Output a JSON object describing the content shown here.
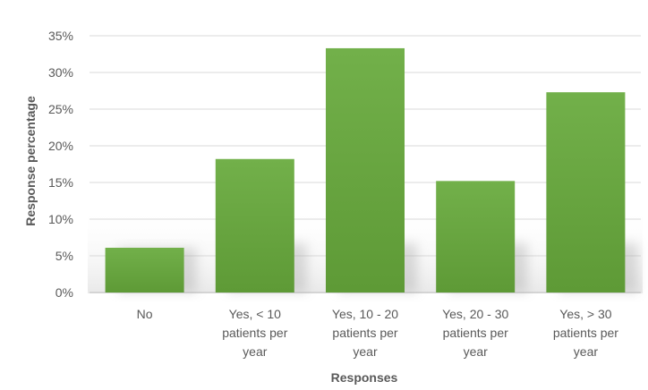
{
  "chart_data": {
    "type": "bar",
    "categories": [
      "No",
      "Yes, < 10 patients per year",
      "Yes, 10 - 20 patients per year",
      "Yes, 20 - 30 patients per year",
      "Yes, > 30 patients per year"
    ],
    "category_lines": [
      [
        "No"
      ],
      [
        "Yes, < 10",
        "patients per",
        "year"
      ],
      [
        "Yes, 10 - 20",
        "patients per",
        "year"
      ],
      [
        "Yes, 20 - 30",
        "patients per",
        "year"
      ],
      [
        "Yes, > 30",
        "patients per",
        "year"
      ]
    ],
    "values": [
      6.1,
      18.2,
      33.3,
      15.2,
      27.3
    ],
    "value_unit": "%",
    "title": "",
    "xlabel": "Responses",
    "ylabel": "Response percentage",
    "ylim": [
      0,
      35
    ],
    "yticks": [
      0,
      5,
      10,
      15,
      20,
      25,
      30,
      35
    ],
    "ytick_labels": [
      "0%",
      "5%",
      "10%",
      "15%",
      "20%",
      "25%",
      "30%",
      "35%"
    ],
    "grid": true,
    "legend": "none",
    "colors": {
      "bar_top": "#72b04a",
      "bar_bottom": "#5e9a36",
      "gridline": "#d9d9d9",
      "text": "#595959"
    }
  }
}
